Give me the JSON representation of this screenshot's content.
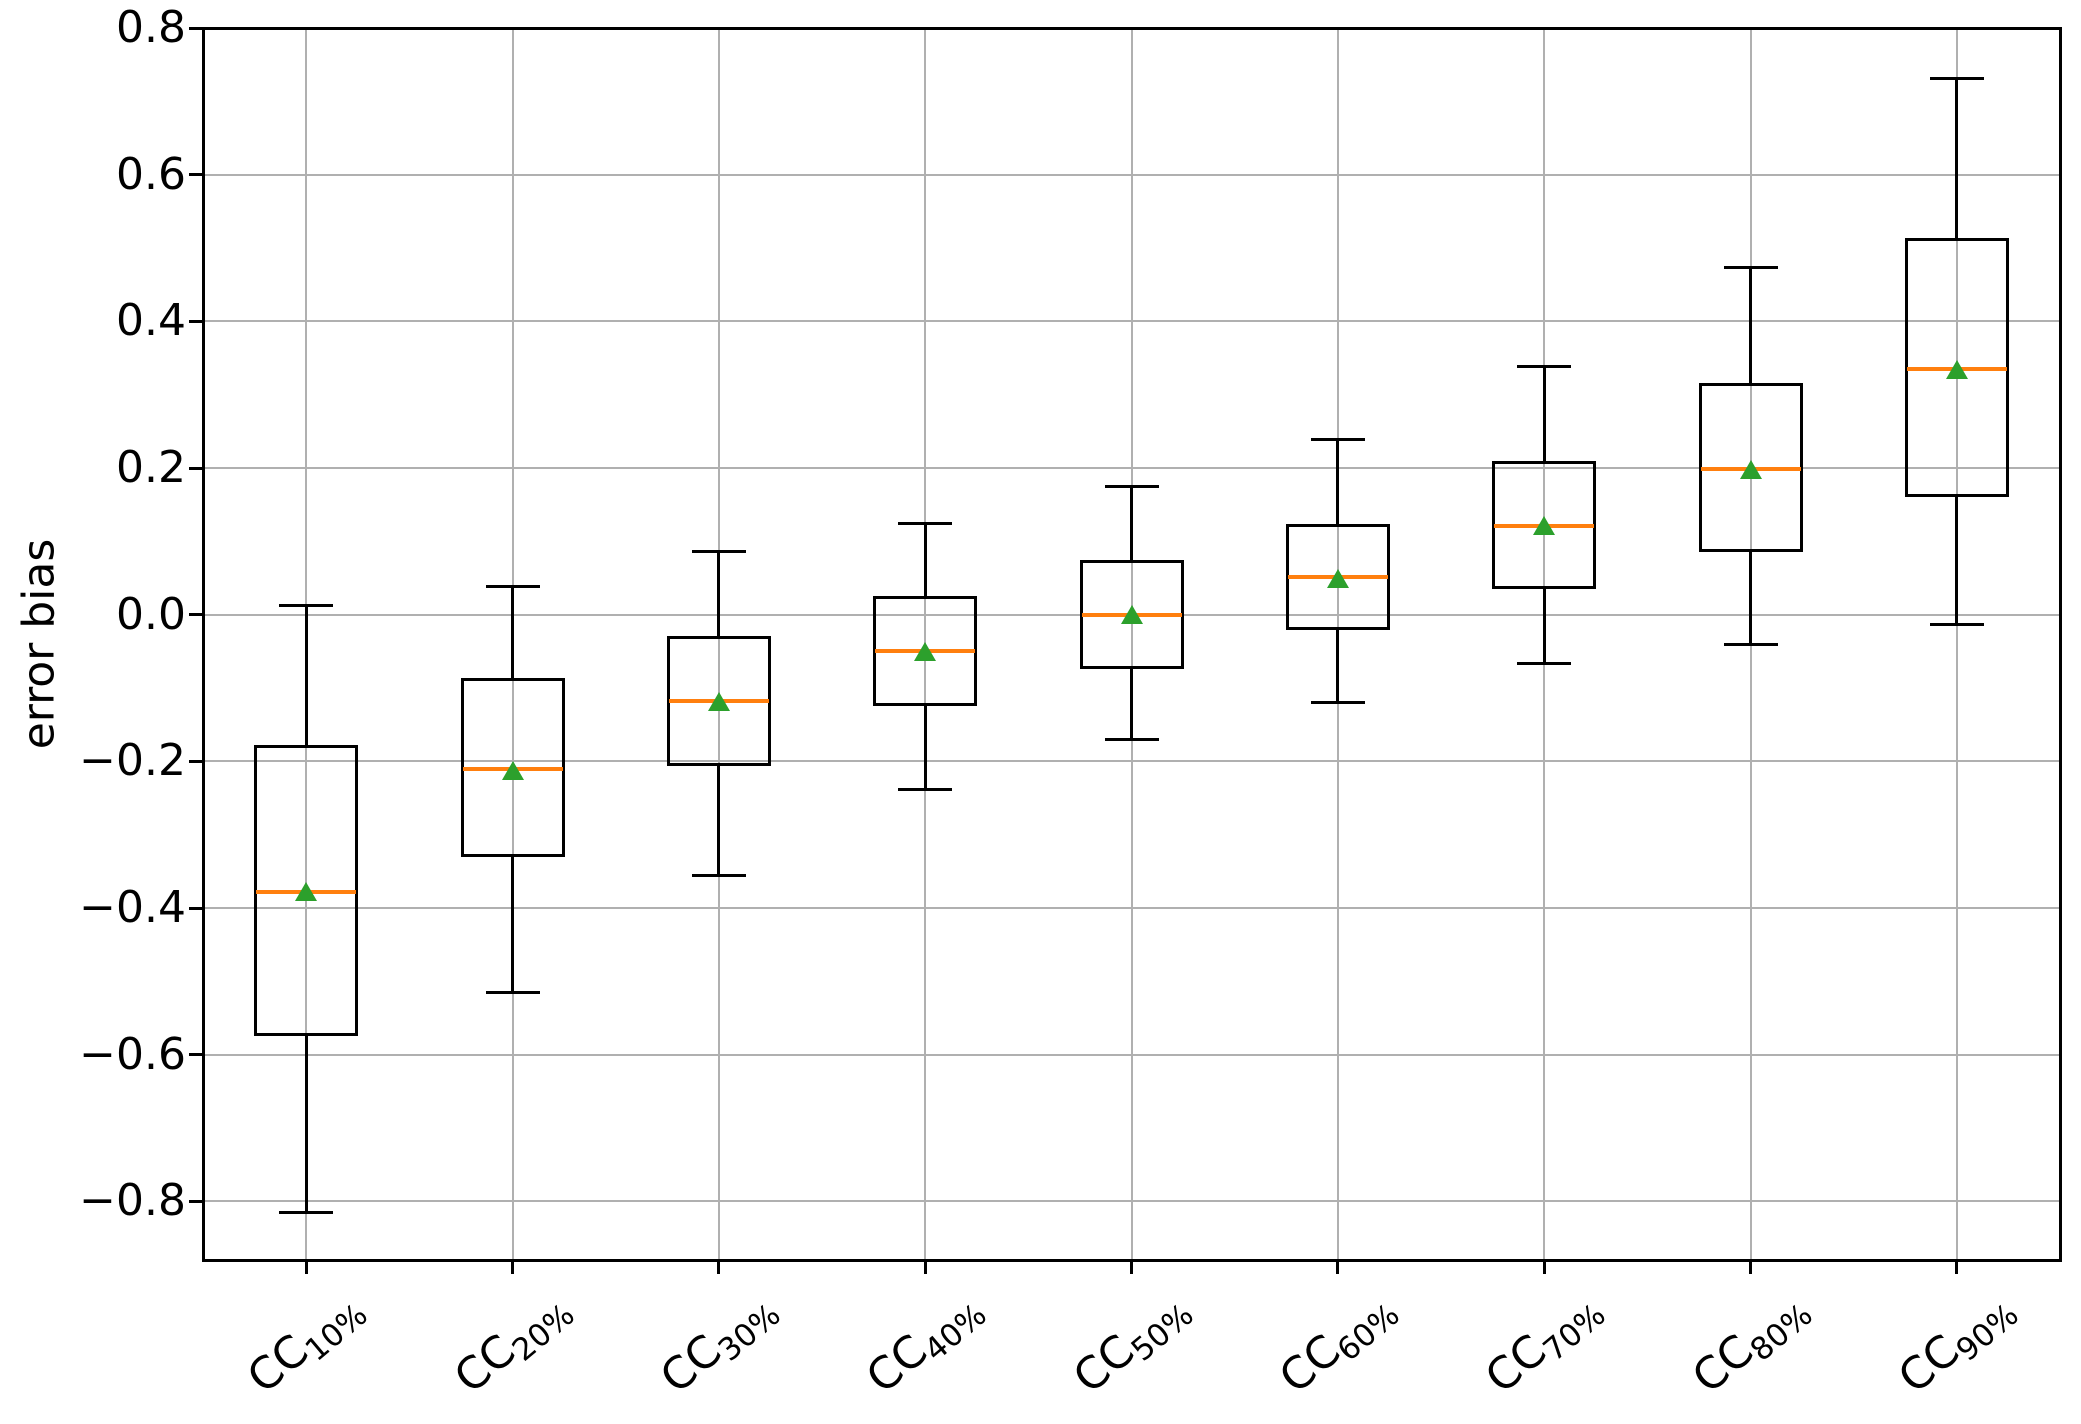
{
  "chart_data": {
    "type": "box",
    "title": "",
    "xlabel": "",
    "ylabel": "error bias",
    "grid": true,
    "legend": "none",
    "background_color": "#ffffff",
    "colors": {
      "box_line": "#000000",
      "median_line": "#ff7f0e",
      "mean_marker": "#2ca02c",
      "gridline": "#b0b0b0",
      "spine": "#000000",
      "tick_text": "#000000"
    },
    "ylim": [
      -0.88,
      0.8
    ],
    "xlim": [
      0.5,
      9.5
    ],
    "yticks": [
      {
        "value": 0.8,
        "label": "0.8"
      },
      {
        "value": 0.6,
        "label": "0.6"
      },
      {
        "value": 0.4,
        "label": "0.4"
      },
      {
        "value": 0.2,
        "label": "0.2"
      },
      {
        "value": 0.0,
        "label": "0.0"
      },
      {
        "value": -0.2,
        "label": "−0.2"
      },
      {
        "value": -0.4,
        "label": "−0.4"
      },
      {
        "value": -0.6,
        "label": "−0.6"
      },
      {
        "value": -0.8,
        "label": "−0.8"
      }
    ],
    "categories": [
      {
        "label": "CC10%",
        "base": "CC",
        "subscript": "10%",
        "position": 1
      },
      {
        "label": "CC20%",
        "base": "CC",
        "subscript": "20%",
        "position": 2
      },
      {
        "label": "CC30%",
        "base": "CC",
        "subscript": "30%",
        "position": 3
      },
      {
        "label": "CC40%",
        "base": "CC",
        "subscript": "40%",
        "position": 4
      },
      {
        "label": "CC50%",
        "base": "CC",
        "subscript": "50%",
        "position": 5
      },
      {
        "label": "CC60%",
        "base": "CC",
        "subscript": "60%",
        "position": 6
      },
      {
        "label": "CC70%",
        "base": "CC",
        "subscript": "70%",
        "position": 7
      },
      {
        "label": "CC80%",
        "base": "CC",
        "subscript": "80%",
        "position": 8
      },
      {
        "label": "CC90%",
        "base": "CC",
        "subscript": "90%",
        "position": 9
      }
    ],
    "series": [
      {
        "label": "CC10%",
        "whislo": -0.815,
        "q1": -0.575,
        "med": -0.378,
        "q3": -0.178,
        "whishi": 0.012,
        "mean": -0.378,
        "fliers": []
      },
      {
        "label": "CC20%",
        "whislo": -0.515,
        "q1": -0.33,
        "med": -0.21,
        "q3": -0.086,
        "whishi": 0.038,
        "mean": -0.212,
        "fliers": []
      },
      {
        "label": "CC30%",
        "whislo": -0.356,
        "q1": -0.206,
        "med": -0.118,
        "q3": -0.029,
        "whishi": 0.086,
        "mean": -0.118,
        "fliers": []
      },
      {
        "label": "CC40%",
        "whislo": -0.238,
        "q1": -0.124,
        "med": -0.049,
        "q3": 0.026,
        "whishi": 0.124,
        "mean": -0.05,
        "fliers": []
      },
      {
        "label": "CC50%",
        "whislo": -0.17,
        "q1": -0.074,
        "med": 0.0,
        "q3": 0.074,
        "whishi": 0.175,
        "mean": 0.0,
        "fliers": []
      },
      {
        "label": "CC60%",
        "whislo": -0.12,
        "q1": -0.021,
        "med": 0.051,
        "q3": 0.124,
        "whishi": 0.239,
        "mean": 0.05,
        "fliers": []
      },
      {
        "label": "CC70%",
        "whislo": -0.067,
        "q1": 0.035,
        "med": 0.121,
        "q3": 0.209,
        "whishi": 0.339,
        "mean": 0.121,
        "fliers": []
      },
      {
        "label": "CC80%",
        "whislo": -0.04,
        "q1": 0.086,
        "med": 0.198,
        "q3": 0.316,
        "whishi": 0.473,
        "mean": 0.198,
        "fliers": []
      },
      {
        "label": "CC90%",
        "whislo": -0.014,
        "q1": 0.16,
        "med": 0.335,
        "q3": 0.514,
        "whishi": 0.731,
        "mean": 0.334,
        "fliers": []
      }
    ]
  }
}
